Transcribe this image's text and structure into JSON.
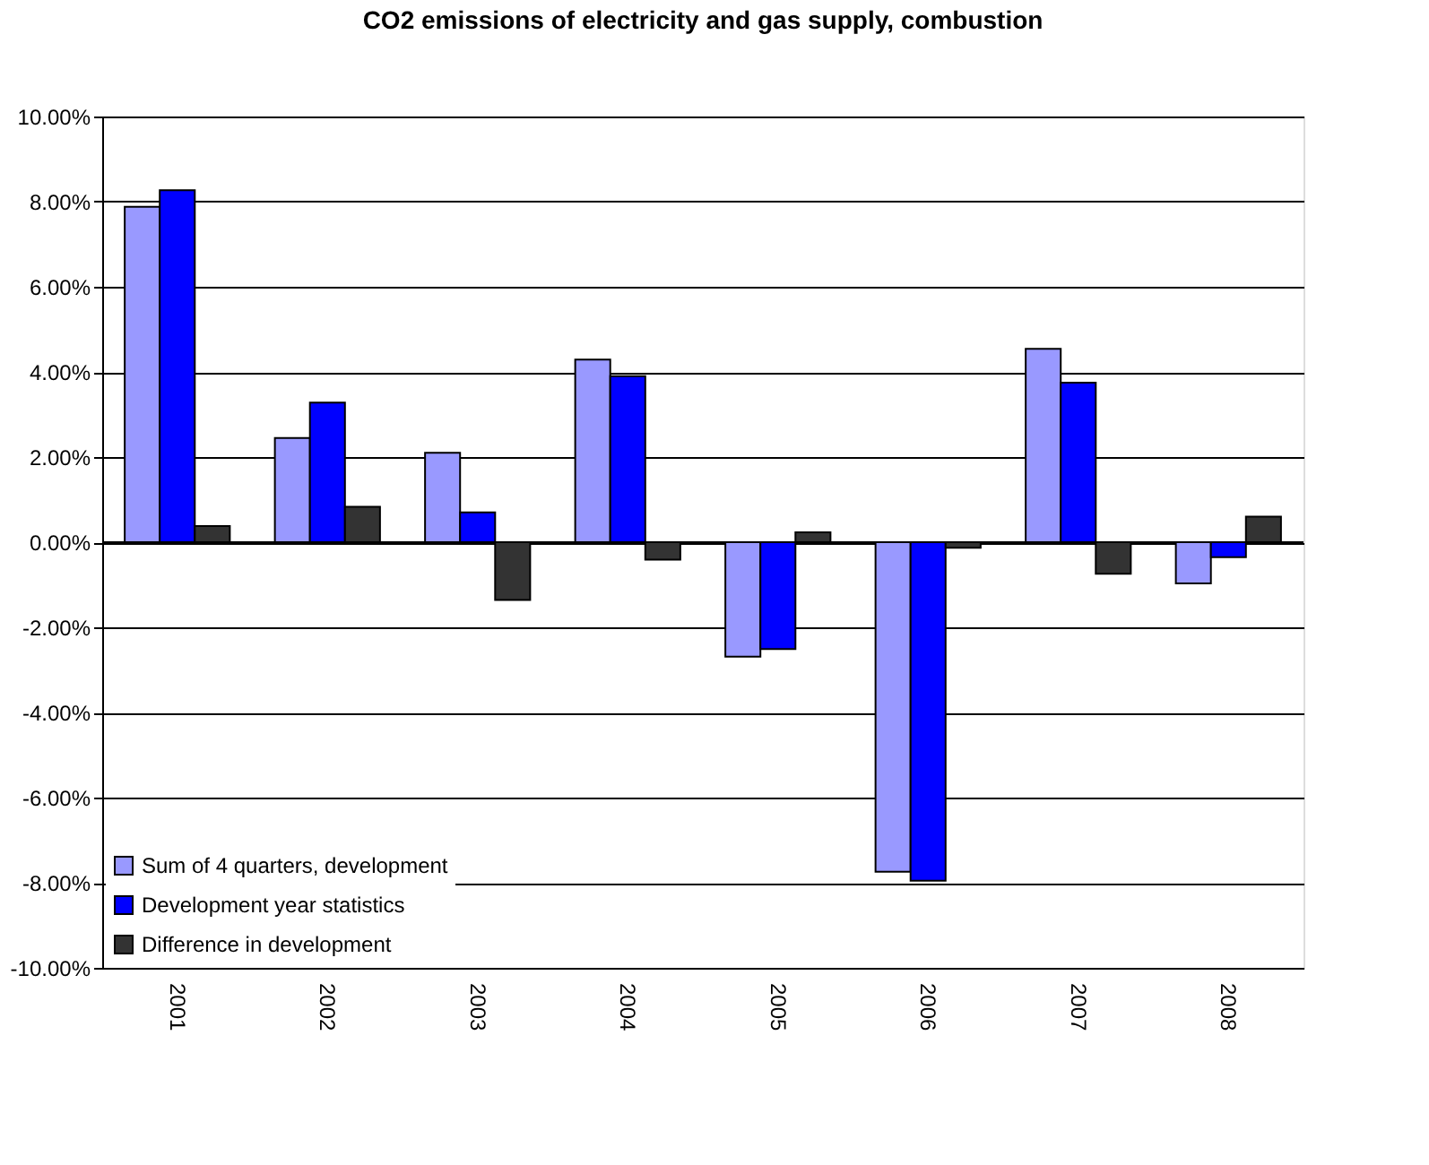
{
  "chart_data": {
    "type": "bar",
    "title": "CO2 emissions of electricity and gas supply, combustion",
    "categories": [
      "2001",
      "2002",
      "2003",
      "2004",
      "2005",
      "2006",
      "2007",
      "2008"
    ],
    "series": [
      {
        "name": "Sum of 4 quarters, development",
        "color": "#9999ff",
        "values": [
          7.88,
          2.45,
          2.1,
          4.29,
          -2.69,
          -7.74,
          4.54,
          -0.97
        ]
      },
      {
        "name": "Development year statistics",
        "color": "#0000ff",
        "values": [
          8.27,
          3.28,
          0.7,
          3.9,
          -2.51,
          -7.95,
          3.75,
          -0.35
        ]
      },
      {
        "name": "Difference in development",
        "color": "#333333",
        "values": [
          0.38,
          0.83,
          -1.36,
          -0.41,
          0.23,
          -0.13,
          -0.74,
          0.6
        ]
      }
    ],
    "ylim": [
      -10,
      10
    ],
    "yticks": [
      {
        "value": -10,
        "label": "-10.00%"
      },
      {
        "value": -8,
        "label": "-8.00%"
      },
      {
        "value": -6,
        "label": "-6.00%"
      },
      {
        "value": -4,
        "label": "-4.00%"
      },
      {
        "value": -2,
        "label": "-2.00%"
      },
      {
        "value": 0,
        "label": "0.00%"
      },
      {
        "value": 2,
        "label": "2.00%"
      },
      {
        "value": 4,
        "label": "4.00%"
      },
      {
        "value": 6,
        "label": "6.00%"
      },
      {
        "value": 8,
        "label": "8.00%"
      },
      {
        "value": 10,
        "label": "10.00%"
      }
    ],
    "grid": "y",
    "legend": "bottom left"
  }
}
